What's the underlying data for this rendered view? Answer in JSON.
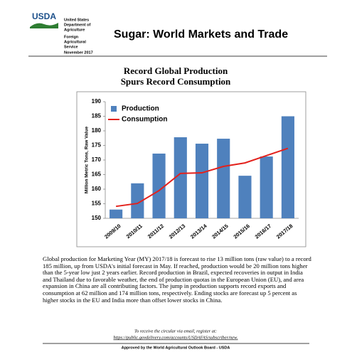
{
  "header": {
    "logo": "USDA",
    "agency_lines": [
      "United States",
      "Department of",
      "Agriculture"
    ],
    "service_lines": [
      "Foreign",
      "Agricultural",
      "Service"
    ],
    "date": "November 2017",
    "title": "Sugar: World Markets and Trade"
  },
  "chart_data": {
    "type": "bar",
    "title": [
      "Record Global Production",
      "Spurs Record Consumption"
    ],
    "y_label": "Million Metric Tons, Raw Value",
    "categories": [
      "2009/10",
      "2010/11",
      "2011/12",
      "2012/13",
      "2013/14",
      "2014/15",
      "2015/16",
      "2016/17",
      "2017/18"
    ],
    "series": [
      {
        "name": "Production",
        "type": "bar",
        "color": "#4f81bd",
        "values": [
          153,
          162,
          172.2,
          177.8,
          175.6,
          177.3,
          164.6,
          171.2,
          185
        ]
      },
      {
        "name": "Consumption",
        "type": "line",
        "color": "#e3211c",
        "values": [
          154.1,
          155.1,
          159.5,
          165.4,
          165.6,
          167.8,
          169,
          171.5,
          174
        ]
      }
    ],
    "ylim": [
      150,
      190
    ],
    "yticks": [
      150,
      155,
      160,
      165,
      170,
      175,
      180,
      185,
      190
    ],
    "grid": false,
    "legend": "top-left"
  },
  "body": "Global production for Marketing Year (MY) 2017/18 is forecast to rise 13 million tons (raw value) to a record 185 million, up from USDA's initial forecast in May.  If reached, production would be 20 million tons higher than the 5-year low just 2 years earlier.  Record production in Brazil, expected recoveries in output in India and Thailand due to favorable weather, the end of production quotas in the European Union (EU), and area expansion in China are all contributing factors.  The jump in production supports record exports and consumption at 62 million and 174 million tons, respectively.  Ending stocks are forecast up 5 percent as higher stocks in the EU and India more than offset lower stocks in China.",
  "footer": {
    "note": "To receive the circular via email, register at:",
    "link": "https://public.govdelivery.com/accounts/USDAFAS/subscriber/new.",
    "approval": "Approved by the World Agricultural Outlook Board - USDA"
  }
}
